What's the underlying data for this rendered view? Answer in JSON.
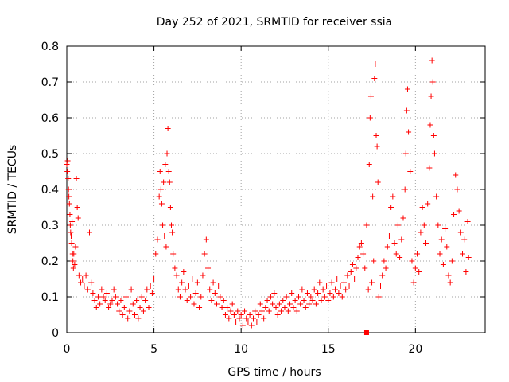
{
  "chart_data": {
    "type": "scatter",
    "title": "Day 252 of 2021, SRMTID for receiver ssia",
    "xlabel": "GPS time / hours",
    "ylabel": "SRMTID / TECUs",
    "xlim": [
      0,
      24
    ],
    "ylim": [
      0,
      0.8
    ],
    "xticks": [
      "0",
      "5",
      "10",
      "15",
      "20"
    ],
    "yticks": [
      "0",
      "0.1",
      "0.2",
      "0.3",
      "0.4",
      "0.5",
      "0.6",
      "0.7",
      "0.8"
    ],
    "grid": true,
    "marker": "+",
    "series_color": "#ff0000",
    "series": [
      {
        "name": "SRMTID",
        "points": [
          [
            0.0,
            0.47
          ],
          [
            0.03,
            0.45
          ],
          [
            0.05,
            0.48
          ],
          [
            0.08,
            0.43
          ],
          [
            0.1,
            0.4
          ],
          [
            0.12,
            0.38
          ],
          [
            0.15,
            0.36
          ],
          [
            0.18,
            0.33
          ],
          [
            0.2,
            0.3
          ],
          [
            0.22,
            0.28
          ],
          [
            0.25,
            0.27
          ],
          [
            0.28,
            0.25
          ],
          [
            0.3,
            0.31
          ],
          [
            0.33,
            0.22
          ],
          [
            0.35,
            0.2
          ],
          [
            0.38,
            0.18
          ],
          [
            0.4,
            0.22
          ],
          [
            0.45,
            0.19
          ],
          [
            0.5,
            0.24
          ],
          [
            0.55,
            0.43
          ],
          [
            0.6,
            0.35
          ],
          [
            0.65,
            0.32
          ],
          [
            0.7,
            0.16
          ],
          [
            0.8,
            0.14
          ],
          [
            0.9,
            0.15
          ],
          [
            1.0,
            0.13
          ],
          [
            1.1,
            0.16
          ],
          [
            1.2,
            0.12
          ],
          [
            1.3,
            0.28
          ],
          [
            1.4,
            0.14
          ],
          [
            1.5,
            0.11
          ],
          [
            1.6,
            0.09
          ],
          [
            1.7,
            0.07
          ],
          [
            1.8,
            0.1
          ],
          [
            1.9,
            0.08
          ],
          [
            2.0,
            0.12
          ],
          [
            2.1,
            0.1
          ],
          [
            2.2,
            0.09
          ],
          [
            2.3,
            0.11
          ],
          [
            2.4,
            0.07
          ],
          [
            2.5,
            0.08
          ],
          [
            2.6,
            0.09
          ],
          [
            2.7,
            0.12
          ],
          [
            2.8,
            0.1
          ],
          [
            2.9,
            0.08
          ],
          [
            3.0,
            0.06
          ],
          [
            3.1,
            0.09
          ],
          [
            3.2,
            0.05
          ],
          [
            3.3,
            0.07
          ],
          [
            3.4,
            0.1
          ],
          [
            3.5,
            0.04
          ],
          [
            3.6,
            0.06
          ],
          [
            3.7,
            0.12
          ],
          [
            3.8,
            0.08
          ],
          [
            3.9,
            0.05
          ],
          [
            4.0,
            0.09
          ],
          [
            4.1,
            0.04
          ],
          [
            4.2,
            0.07
          ],
          [
            4.3,
            0.1
          ],
          [
            4.4,
            0.06
          ],
          [
            4.5,
            0.09
          ],
          [
            4.6,
            0.12
          ],
          [
            4.7,
            0.07
          ],
          [
            4.8,
            0.13
          ],
          [
            4.9,
            0.11
          ],
          [
            5.0,
            0.15
          ],
          [
            5.1,
            0.22
          ],
          [
            5.2,
            0.26
          ],
          [
            5.3,
            0.38
          ],
          [
            5.35,
            0.45
          ],
          [
            5.4,
            0.4
          ],
          [
            5.45,
            0.36
          ],
          [
            5.5,
            0.3
          ],
          [
            5.55,
            0.42
          ],
          [
            5.6,
            0.27
          ],
          [
            5.65,
            0.47
          ],
          [
            5.7,
            0.24
          ],
          [
            5.75,
            0.5
          ],
          [
            5.8,
            0.57
          ],
          [
            5.85,
            0.45
          ],
          [
            5.9,
            0.42
          ],
          [
            5.95,
            0.35
          ],
          [
            6.0,
            0.3
          ],
          [
            6.05,
            0.28
          ],
          [
            6.1,
            0.22
          ],
          [
            6.2,
            0.18
          ],
          [
            6.3,
            0.16
          ],
          [
            6.4,
            0.12
          ],
          [
            6.5,
            0.1
          ],
          [
            6.6,
            0.14
          ],
          [
            6.7,
            0.17
          ],
          [
            6.8,
            0.12
          ],
          [
            6.9,
            0.09
          ],
          [
            7.0,
            0.13
          ],
          [
            7.1,
            0.1
          ],
          [
            7.2,
            0.15
          ],
          [
            7.3,
            0.08
          ],
          [
            7.4,
            0.11
          ],
          [
            7.5,
            0.14
          ],
          [
            7.6,
            0.07
          ],
          [
            7.7,
            0.1
          ],
          [
            7.8,
            0.16
          ],
          [
            7.9,
            0.22
          ],
          [
            8.0,
            0.26
          ],
          [
            8.1,
            0.18
          ],
          [
            8.2,
            0.12
          ],
          [
            8.3,
            0.09
          ],
          [
            8.4,
            0.14
          ],
          [
            8.5,
            0.11
          ],
          [
            8.6,
            0.08
          ],
          [
            8.7,
            0.13
          ],
          [
            8.8,
            0.1
          ],
          [
            8.9,
            0.07
          ],
          [
            9.0,
            0.09
          ],
          [
            9.1,
            0.05
          ],
          [
            9.2,
            0.07
          ],
          [
            9.3,
            0.04
          ],
          [
            9.4,
            0.06
          ],
          [
            9.5,
            0.08
          ],
          [
            9.6,
            0.05
          ],
          [
            9.7,
            0.03
          ],
          [
            9.8,
            0.06
          ],
          [
            9.9,
            0.04
          ],
          [
            10.0,
            0.05
          ],
          [
            10.1,
            0.02
          ],
          [
            10.2,
            0.06
          ],
          [
            10.3,
            0.04
          ],
          [
            10.4,
            0.03
          ],
          [
            10.5,
            0.05
          ],
          [
            10.6,
            0.02
          ],
          [
            10.7,
            0.04
          ],
          [
            10.8,
            0.06
          ],
          [
            10.9,
            0.03
          ],
          [
            11.0,
            0.05
          ],
          [
            11.1,
            0.08
          ],
          [
            11.2,
            0.06
          ],
          [
            11.3,
            0.04
          ],
          [
            11.4,
            0.07
          ],
          [
            11.5,
            0.09
          ],
          [
            11.6,
            0.06
          ],
          [
            11.7,
            0.1
          ],
          [
            11.8,
            0.08
          ],
          [
            11.9,
            0.11
          ],
          [
            12.0,
            0.07
          ],
          [
            12.1,
            0.05
          ],
          [
            12.2,
            0.08
          ],
          [
            12.3,
            0.06
          ],
          [
            12.4,
            0.09
          ],
          [
            12.5,
            0.07
          ],
          [
            12.6,
            0.1
          ],
          [
            12.7,
            0.06
          ],
          [
            12.8,
            0.08
          ],
          [
            12.9,
            0.11
          ],
          [
            13.0,
            0.07
          ],
          [
            13.1,
            0.09
          ],
          [
            13.2,
            0.06
          ],
          [
            13.3,
            0.1
          ],
          [
            13.4,
            0.08
          ],
          [
            13.5,
            0.12
          ],
          [
            13.6,
            0.09
          ],
          [
            13.7,
            0.07
          ],
          [
            13.8,
            0.11
          ],
          [
            13.9,
            0.08
          ],
          [
            14.0,
            0.1
          ],
          [
            14.1,
            0.09
          ],
          [
            14.2,
            0.12
          ],
          [
            14.3,
            0.08
          ],
          [
            14.4,
            0.11
          ],
          [
            14.5,
            0.14
          ],
          [
            14.6,
            0.09
          ],
          [
            14.7,
            0.12
          ],
          [
            14.8,
            0.1
          ],
          [
            14.9,
            0.13
          ],
          [
            15.0,
            0.09
          ],
          [
            15.1,
            0.11
          ],
          [
            15.2,
            0.14
          ],
          [
            15.3,
            0.1
          ],
          [
            15.4,
            0.12
          ],
          [
            15.5,
            0.15
          ],
          [
            15.6,
            0.11
          ],
          [
            15.7,
            0.13
          ],
          [
            15.8,
            0.1
          ],
          [
            15.9,
            0.14
          ],
          [
            16.0,
            0.12
          ],
          [
            16.1,
            0.16
          ],
          [
            16.2,
            0.13
          ],
          [
            16.3,
            0.17
          ],
          [
            16.4,
            0.19
          ],
          [
            16.5,
            0.15
          ],
          [
            16.6,
            0.18
          ],
          [
            16.7,
            0.21
          ],
          [
            16.8,
            0.24
          ],
          [
            16.9,
            0.25
          ],
          [
            17.0,
            0.22
          ],
          [
            17.1,
            0.18
          ],
          [
            17.2,
            0.3
          ],
          [
            17.3,
            0.12
          ],
          [
            17.35,
            0.47
          ],
          [
            17.4,
            0.6
          ],
          [
            17.45,
            0.66
          ],
          [
            17.5,
            0.14
          ],
          [
            17.55,
            0.38
          ],
          [
            17.6,
            0.2
          ],
          [
            17.65,
            0.71
          ],
          [
            17.7,
            0.75
          ],
          [
            17.75,
            0.55
          ],
          [
            17.8,
            0.52
          ],
          [
            17.85,
            0.42
          ],
          [
            17.9,
            0.1
          ],
          [
            18.0,
            0.13
          ],
          [
            18.1,
            0.16
          ],
          [
            18.2,
            0.2
          ],
          [
            18.3,
            0.18
          ],
          [
            18.4,
            0.24
          ],
          [
            18.5,
            0.27
          ],
          [
            18.6,
            0.35
          ],
          [
            18.7,
            0.38
          ],
          [
            18.8,
            0.25
          ],
          [
            18.9,
            0.22
          ],
          [
            19.0,
            0.3
          ],
          [
            19.1,
            0.21
          ],
          [
            19.2,
            0.26
          ],
          [
            19.3,
            0.32
          ],
          [
            19.4,
            0.4
          ],
          [
            19.45,
            0.5
          ],
          [
            19.5,
            0.62
          ],
          [
            19.55,
            0.68
          ],
          [
            19.6,
            0.56
          ],
          [
            19.7,
            0.45
          ],
          [
            19.8,
            0.2
          ],
          [
            19.9,
            0.14
          ],
          [
            20.0,
            0.18
          ],
          [
            20.1,
            0.22
          ],
          [
            20.2,
            0.17
          ],
          [
            20.3,
            0.28
          ],
          [
            20.4,
            0.35
          ],
          [
            20.5,
            0.3
          ],
          [
            20.6,
            0.25
          ],
          [
            20.7,
            0.36
          ],
          [
            20.8,
            0.46
          ],
          [
            20.85,
            0.58
          ],
          [
            20.9,
            0.66
          ],
          [
            20.95,
            0.76
          ],
          [
            21.0,
            0.7
          ],
          [
            21.05,
            0.55
          ],
          [
            21.1,
            0.5
          ],
          [
            21.2,
            0.38
          ],
          [
            21.3,
            0.3
          ],
          [
            21.4,
            0.22
          ],
          [
            21.5,
            0.26
          ],
          [
            21.6,
            0.19
          ],
          [
            21.7,
            0.29
          ],
          [
            21.8,
            0.24
          ],
          [
            21.9,
            0.16
          ],
          [
            22.0,
            0.14
          ],
          [
            22.1,
            0.2
          ],
          [
            22.2,
            0.33
          ],
          [
            22.3,
            0.44
          ],
          [
            22.4,
            0.4
          ],
          [
            22.5,
            0.34
          ],
          [
            22.6,
            0.28
          ],
          [
            22.7,
            0.22
          ],
          [
            22.8,
            0.26
          ],
          [
            22.9,
            0.17
          ],
          [
            23.0,
            0.31
          ],
          [
            23.05,
            0.21
          ]
        ]
      }
    ],
    "extra_marks": [
      {
        "shape": "square",
        "x": 17.2,
        "y": 0.0
      }
    ]
  }
}
